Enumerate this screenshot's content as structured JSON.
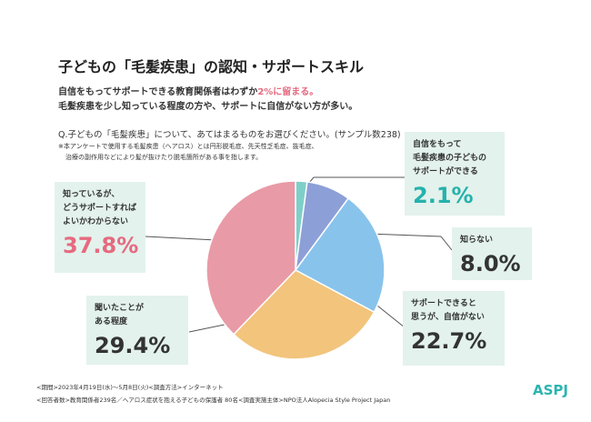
{
  "title": "子どもの「毛髪疾患」の認知・サポートスキル",
  "subtitle": {
    "line1_prefix": "自信をもってサポートできる教育関係者はわずか",
    "line1_highlight": "2%に留まる。",
    "line2": "毛髪疾患を少し知っている程度の方や、サポートに自信がない方が多い。"
  },
  "question": "Q.子どもの「毛髪疾患」について、あてはまるものをお選びください。(サンプル数238)",
  "notes": [
    "※本アンケートで使用する毛髪疾患（ヘアロス）とは円形脱毛症、先天性乏毛症、抜毛症、",
    "治療の副作用などにより髪が抜けたり脱毛箇所がある事を指します。"
  ],
  "footer": [
    "<期間>2023年4月19日(水)〜5月8日(火)<調査方法>インターネット",
    "<回答者数>教育関係者239名／ヘアロス症状を抱える子どもの保護者 80名<調査実施主体>NPO法人Alopecia Style Project Japan"
  ],
  "logo": "ASPJ",
  "chart_data": {
    "type": "pie",
    "categories": [
      "自信をもって\n毛髪疾患の子どもの\nサポートができる",
      "知らない",
      "サポートできると\n思うが、自信がない",
      "聞いたことが\nある程度",
      "知っているが、\nどうサポートすれば\nよいかわからない"
    ],
    "values": [
      2.1,
      8.0,
      22.7,
      29.4,
      37.8
    ],
    "value_labels": [
      "2.1%",
      "8.0%",
      "22.7%",
      "29.4%",
      "37.8%"
    ],
    "colors": [
      "#7fcfc9",
      "#8d9fd7",
      "#88c3ec",
      "#f2c47c",
      "#e99aa7"
    ],
    "label_colors": [
      "#25b2ad",
      "#333333",
      "#333333",
      "#333333",
      "#e56a80"
    ]
  }
}
